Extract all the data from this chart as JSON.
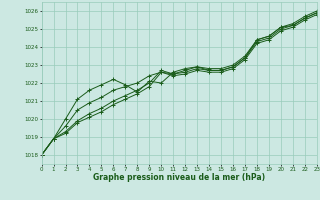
{
  "title": "Graphe pression niveau de la mer (hPa)",
  "bg_color": "#cce8e2",
  "grid_color": "#99ccbb",
  "line_color": "#1a5c1a",
  "xlim": [
    0,
    23
  ],
  "ylim": [
    1017.5,
    1026.5
  ],
  "yticks": [
    1018,
    1019,
    1020,
    1021,
    1022,
    1023,
    1024,
    1025,
    1026
  ],
  "xticks": [
    0,
    1,
    2,
    3,
    4,
    5,
    6,
    7,
    8,
    9,
    10,
    11,
    12,
    13,
    14,
    15,
    16,
    17,
    18,
    19,
    20,
    21,
    22,
    23
  ],
  "series": [
    [
      1018.0,
      1018.9,
      1019.2,
      1019.8,
      1020.1,
      1020.4,
      1020.8,
      1021.1,
      1021.4,
      1021.8,
      1022.6,
      1022.4,
      1022.5,
      1022.7,
      1022.6,
      1022.6,
      1022.8,
      1023.3,
      1024.2,
      1024.4,
      1024.9,
      1025.1,
      1025.5,
      1025.8
    ],
    [
      1018.0,
      1018.9,
      1019.3,
      1019.9,
      1020.3,
      1020.6,
      1021.0,
      1021.3,
      1021.6,
      1022.0,
      1022.7,
      1022.5,
      1022.6,
      1022.8,
      1022.7,
      1022.7,
      1022.9,
      1023.4,
      1024.3,
      1024.5,
      1025.0,
      1025.2,
      1025.6,
      1025.9
    ],
    [
      1018.0,
      1018.9,
      1019.6,
      1020.5,
      1020.9,
      1021.2,
      1021.6,
      1021.8,
      1022.0,
      1022.4,
      1022.6,
      1022.5,
      1022.7,
      1022.9,
      1022.8,
      1022.8,
      1023.0,
      1023.5,
      1024.4,
      1024.6,
      1025.1,
      1025.3,
      1025.7,
      1026.0
    ],
    [
      1018.0,
      1018.9,
      1020.0,
      1021.1,
      1021.6,
      1021.9,
      1022.2,
      1021.9,
      1021.5,
      1022.1,
      1022.0,
      1022.6,
      1022.8,
      1022.9,
      1022.7,
      1022.7,
      1022.9,
      1023.4,
      1024.4,
      1024.6,
      1025.1,
      1025.2,
      1025.6,
      1025.9
    ]
  ]
}
